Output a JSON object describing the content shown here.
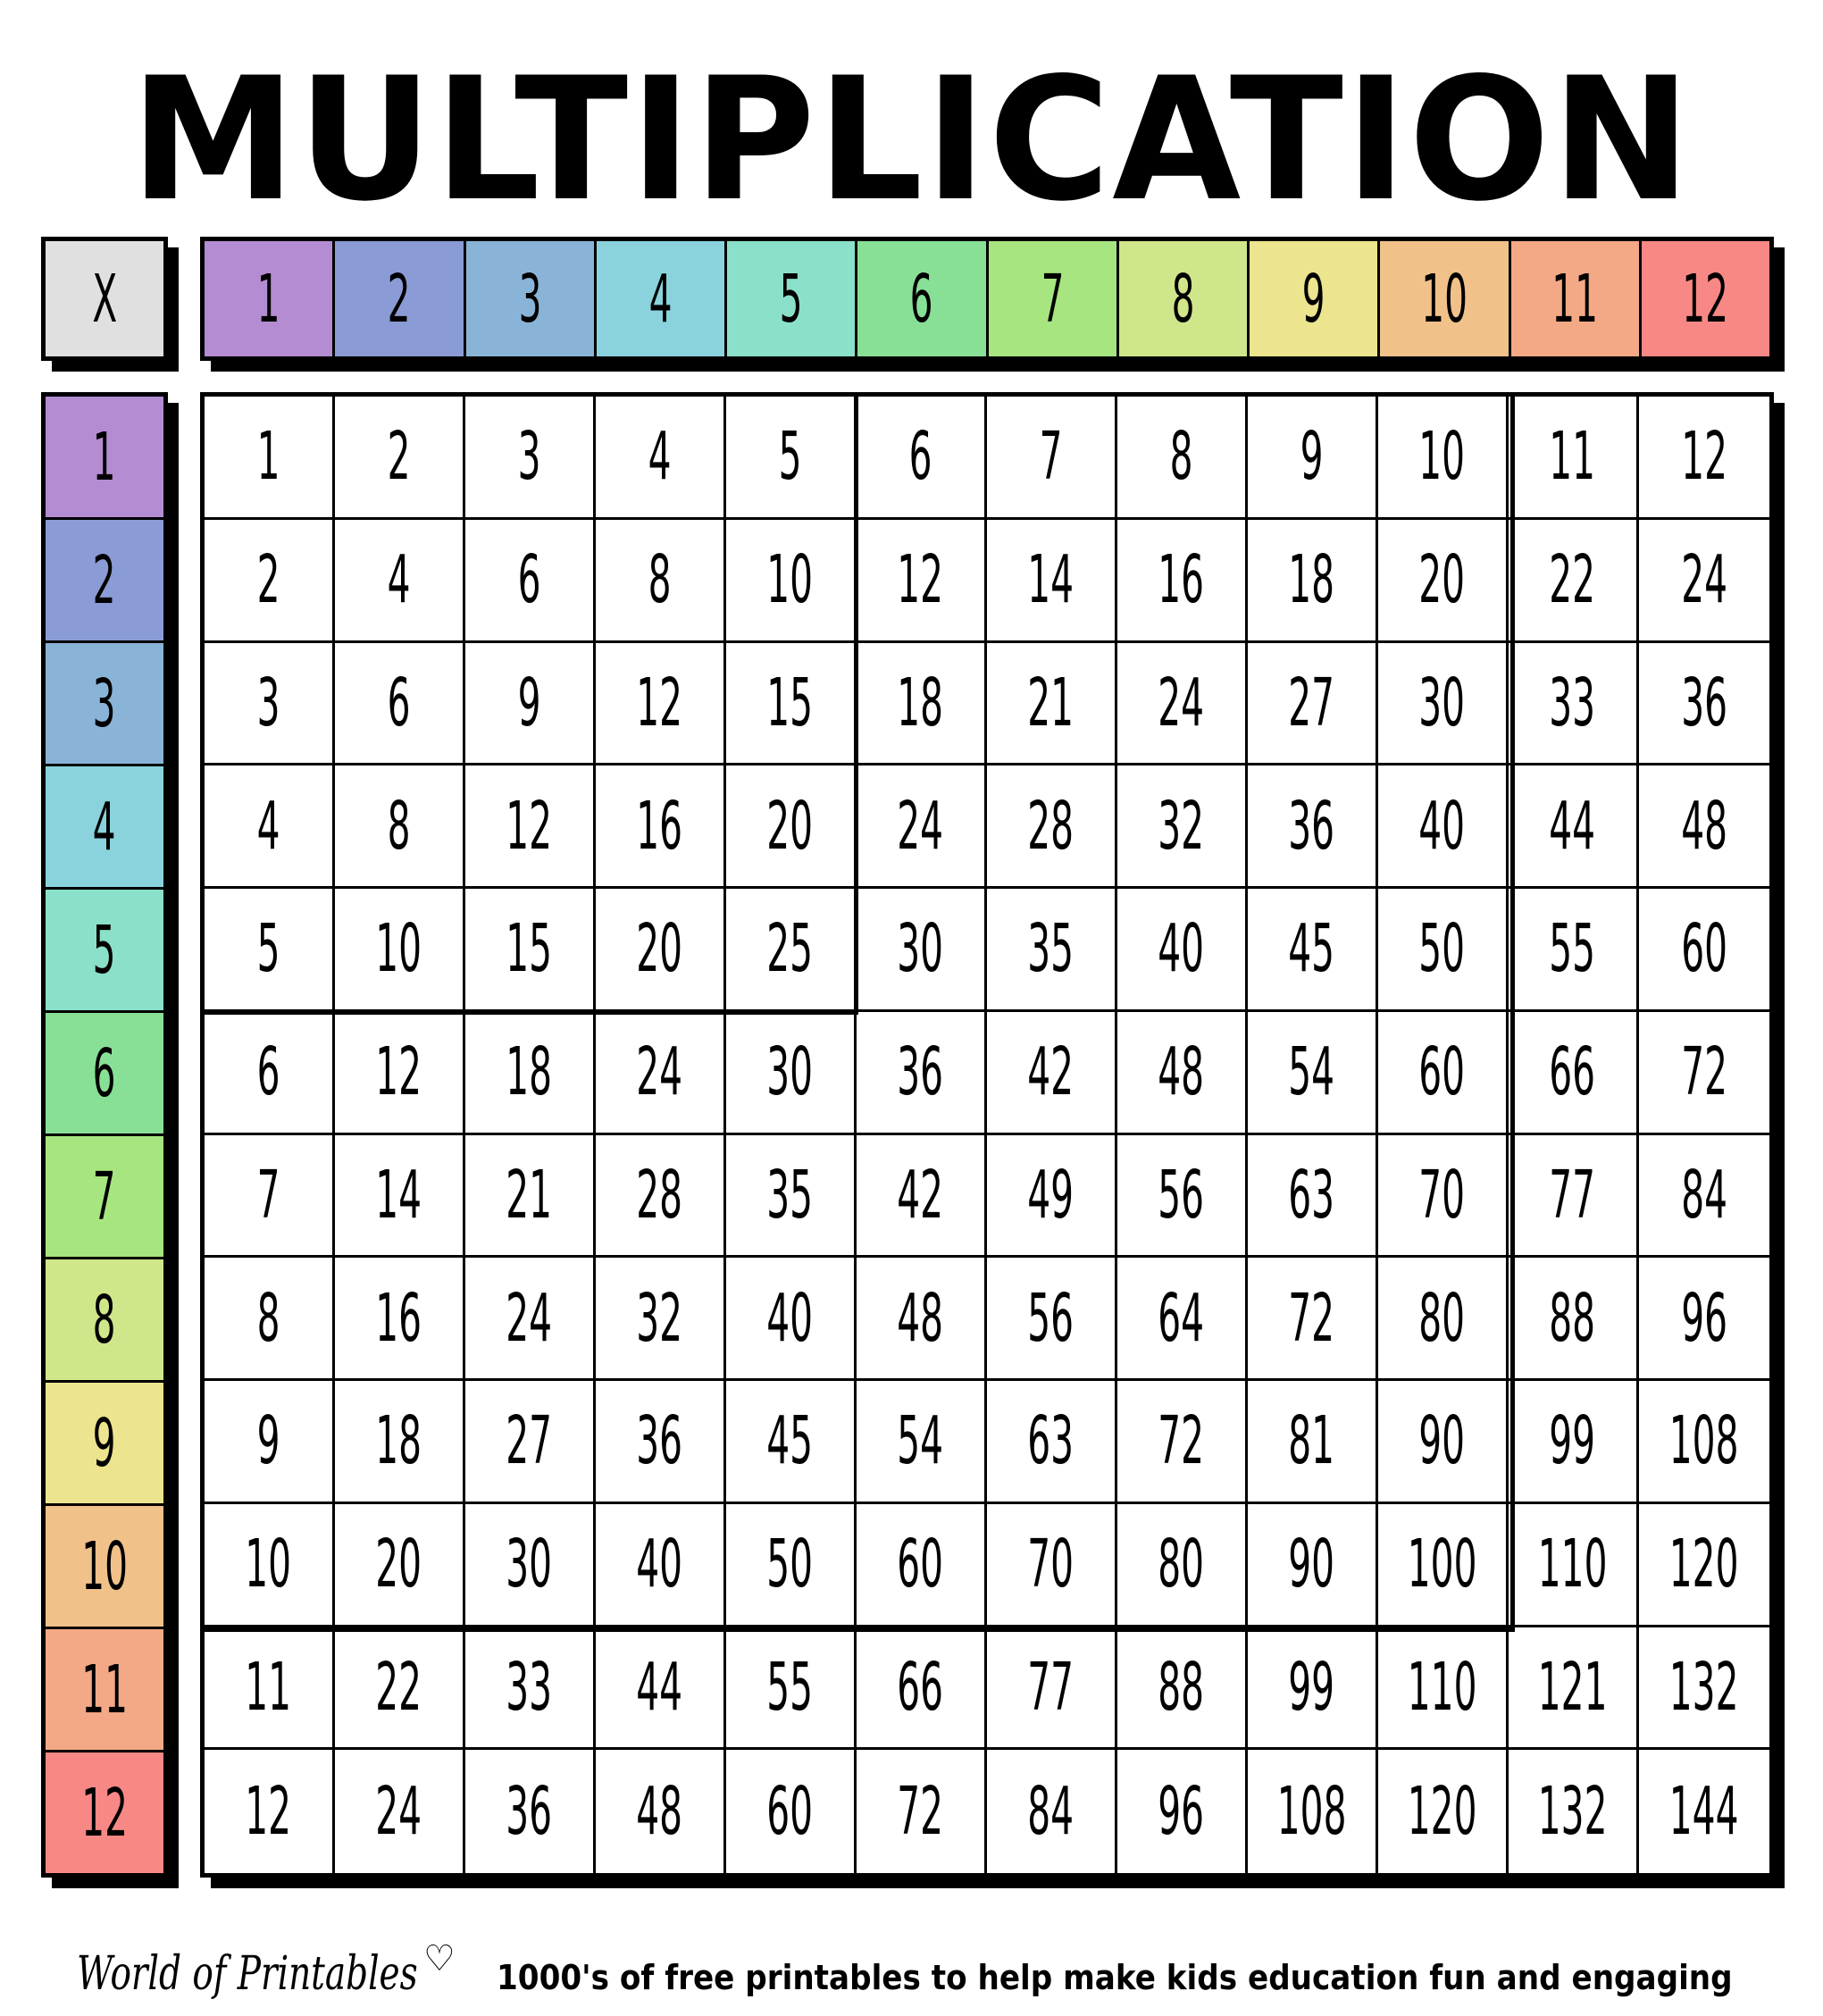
{
  "title": "MULTIPLICATION",
  "corner_label": "X",
  "headers": [
    "1",
    "2",
    "3",
    "4",
    "5",
    "6",
    "7",
    "8",
    "9",
    "10",
    "11",
    "12"
  ],
  "header_colors": [
    "#b48cd2",
    "#8a9bd5",
    "#8ab4d7",
    "#8ad3dd",
    "#8ae0c8",
    "#88e096",
    "#a6e57f",
    "#cfe68a",
    "#ece48e",
    "#f0c189",
    "#f4a986",
    "#f88885"
  ],
  "corner_color": "#e0e0e0",
  "rows": [
    [
      "1",
      "2",
      "3",
      "4",
      "5",
      "6",
      "7",
      "8",
      "9",
      "10",
      "11",
      "12"
    ],
    [
      "2",
      "4",
      "6",
      "8",
      "10",
      "12",
      "14",
      "16",
      "18",
      "20",
      "22",
      "24"
    ],
    [
      "3",
      "6",
      "9",
      "12",
      "15",
      "18",
      "21",
      "24",
      "27",
      "30",
      "33",
      "36"
    ],
    [
      "4",
      "8",
      "12",
      "16",
      "20",
      "24",
      "28",
      "32",
      "36",
      "40",
      "44",
      "48"
    ],
    [
      "5",
      "10",
      "15",
      "20",
      "25",
      "30",
      "35",
      "40",
      "45",
      "50",
      "55",
      "60"
    ],
    [
      "6",
      "12",
      "18",
      "24",
      "30",
      "36",
      "42",
      "48",
      "54",
      "60",
      "66",
      "72"
    ],
    [
      "7",
      "14",
      "21",
      "28",
      "35",
      "42",
      "49",
      "56",
      "63",
      "70",
      "77",
      "84"
    ],
    [
      "8",
      "16",
      "24",
      "32",
      "40",
      "48",
      "56",
      "64",
      "72",
      "80",
      "88",
      "96"
    ],
    [
      "9",
      "18",
      "27",
      "36",
      "45",
      "54",
      "63",
      "72",
      "81",
      "90",
      "99",
      "108"
    ],
    [
      "10",
      "20",
      "30",
      "40",
      "50",
      "60",
      "70",
      "80",
      "90",
      "100",
      "110",
      "120"
    ],
    [
      "11",
      "22",
      "33",
      "44",
      "55",
      "66",
      "77",
      "88",
      "99",
      "110",
      "121",
      "132"
    ],
    [
      "12",
      "24",
      "36",
      "48",
      "60",
      "72",
      "84",
      "96",
      "108",
      "120",
      "132",
      "144"
    ]
  ],
  "footer": {
    "logo": "World of Printables",
    "logo_icon": "heart-icon",
    "tagline": "1000's of free printables to help make kids education fun and engaging"
  }
}
